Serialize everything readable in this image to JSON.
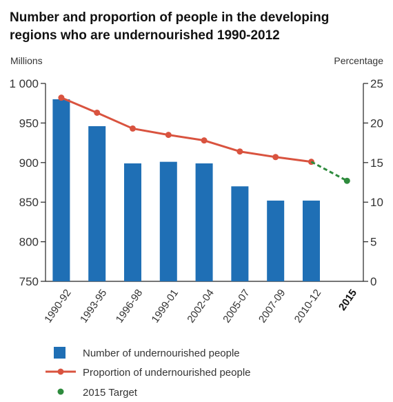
{
  "chart_data": {
    "type": "bar",
    "title": "Number and proportion of people in the developing regions who are undernourished 1990-2012",
    "title_lines": [
      "Number and proportion of people in the developing",
      "regions who are undernourished 1990-2012"
    ],
    "ylabel_left": "Millions",
    "ylabel_right": "Percentage",
    "categories": [
      "1990-92",
      "1993-95",
      "1996-98",
      "1999-01",
      "2002-04",
      "2005-07",
      "2007-09",
      "2010-12",
      "2015"
    ],
    "left_axis": {
      "ylim": [
        750,
        1000
      ],
      "ticks": [
        750,
        800,
        850,
        900,
        950,
        1000
      ],
      "tick_labels": [
        "750",
        "800",
        "850",
        "900",
        "950",
        "1 000"
      ]
    },
    "right_axis": {
      "ylim": [
        0,
        25
      ],
      "ticks": [
        0,
        5,
        10,
        15,
        20,
        25
      ],
      "tick_labels": [
        "0",
        "5",
        "10",
        "15",
        "20",
        "25"
      ]
    },
    "series": [
      {
        "name": "Number of undernourished people",
        "type": "bar",
        "axis": "left",
        "color": "#1f6fb5",
        "values": [
          980,
          946,
          899,
          901,
          899,
          870,
          852,
          852,
          null
        ]
      },
      {
        "name": "Proportion of undernourished people",
        "type": "line",
        "axis": "right",
        "color": "#d9533f",
        "values": [
          23.2,
          21.3,
          19.3,
          18.5,
          17.8,
          16.4,
          15.7,
          15.1,
          null
        ]
      },
      {
        "name": "2015 Target",
        "type": "point",
        "axis": "right",
        "color": "#2e8b3d",
        "values": [
          null,
          null,
          null,
          null,
          null,
          null,
          null,
          null,
          12.7
        ]
      }
    ],
    "grid": false,
    "legend_placement": "bottom"
  }
}
